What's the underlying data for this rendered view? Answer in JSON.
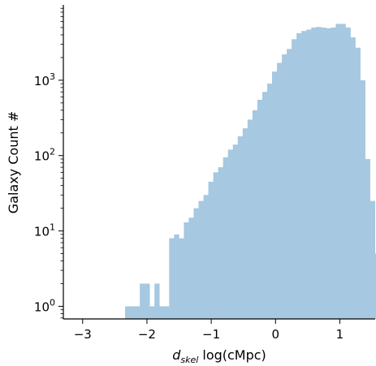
{
  "chart_data": {
    "type": "bar",
    "subtype": "histogram",
    "color": "#a6c8e0",
    "ylabel": "Galaxy Count #",
    "xlabel_main": "d",
    "xlabel_sub": "skel",
    "xlabel_rest": " log(cMpc)",
    "yscale": "log",
    "xlim": [
      -3.3,
      1.55
    ],
    "ylim": [
      0.68,
      10000
    ],
    "xticks": [
      {
        "value": -3,
        "label": "−3"
      },
      {
        "value": -2,
        "label": "−2"
      },
      {
        "value": -1,
        "label": "−1"
      },
      {
        "value": 0,
        "label": "0"
      },
      {
        "value": 1,
        "label": "1"
      }
    ],
    "yticks": [
      {
        "value": 1,
        "base": "10",
        "exp": "0"
      },
      {
        "value": 10,
        "base": "10",
        "exp": "1"
      },
      {
        "value": 100,
        "base": "10",
        "exp": "2"
      },
      {
        "value": 1000,
        "base": "10",
        "exp": "3"
      }
    ],
    "bin_start": -2.34,
    "bin_width": 0.0762,
    "counts": [
      1,
      1,
      1,
      2,
      2,
      1,
      2,
      1,
      1,
      8,
      9,
      8,
      13,
      15,
      20,
      25,
      30,
      45,
      60,
      70,
      95,
      120,
      140,
      180,
      230,
      300,
      400,
      550,
      700,
      900,
      1300,
      1700,
      2200,
      2600,
      3500,
      4200,
      4500,
      4700,
      5000,
      5100,
      5000,
      4900,
      5000,
      5600,
      5600,
      5000,
      3700,
      2700,
      1000,
      90,
      25,
      5,
      1
    ]
  }
}
